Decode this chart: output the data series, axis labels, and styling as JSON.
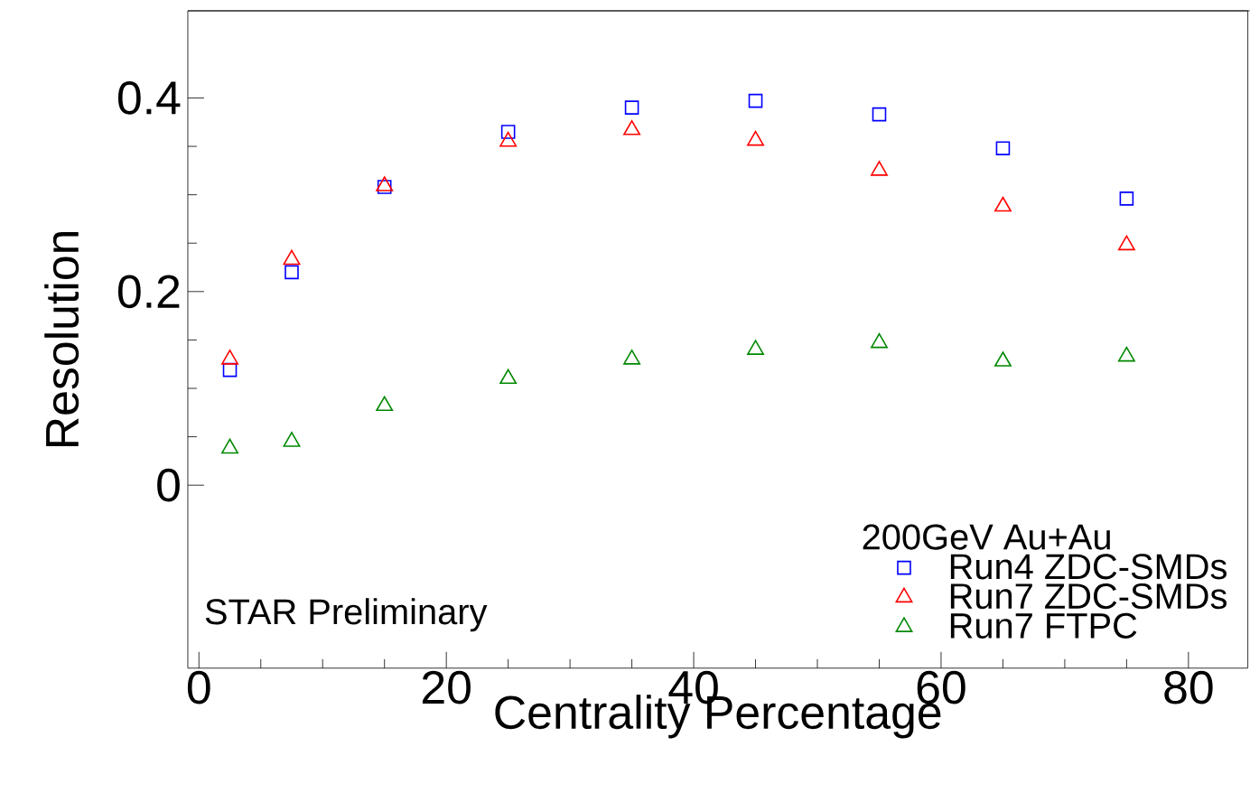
{
  "chart_data": {
    "type": "scatter",
    "xlabel": "Centrality Percentage",
    "ylabel": "Resolution",
    "legend_title": "200GeV Au+Au",
    "annotations": [
      "STAR Preliminary"
    ],
    "x": [
      2.5,
      7.5,
      15,
      25,
      35,
      45,
      55,
      65,
      75
    ],
    "xlim": [
      -0.9,
      84.8
    ],
    "ylim": [
      -0.189,
      0.49
    ],
    "xticks": [
      0,
      20,
      40,
      60,
      80
    ],
    "yticks": [
      0,
      0.2,
      0.4
    ],
    "legend": "bottom right",
    "series": [
      {
        "name": "Run4 ZDC-SMDs",
        "color": "#0000ff",
        "marker": "square",
        "values": [
          0.119,
          0.22,
          0.308,
          0.365,
          0.39,
          0.397,
          0.383,
          0.348,
          0.296
        ]
      },
      {
        "name": "Run7 ZDC-SMDs",
        "color": "#ff0000",
        "marker": "triangle",
        "values": [
          0.13,
          0.233,
          0.309,
          0.355,
          0.367,
          0.356,
          0.325,
          0.288,
          0.248
        ]
      },
      {
        "name": "Run7 FTPC",
        "color": "#008800",
        "marker": "triangle",
        "values": [
          0.038,
          0.045,
          0.082,
          0.11,
          0.13,
          0.14,
          0.147,
          0.128,
          0.133
        ]
      }
    ]
  }
}
